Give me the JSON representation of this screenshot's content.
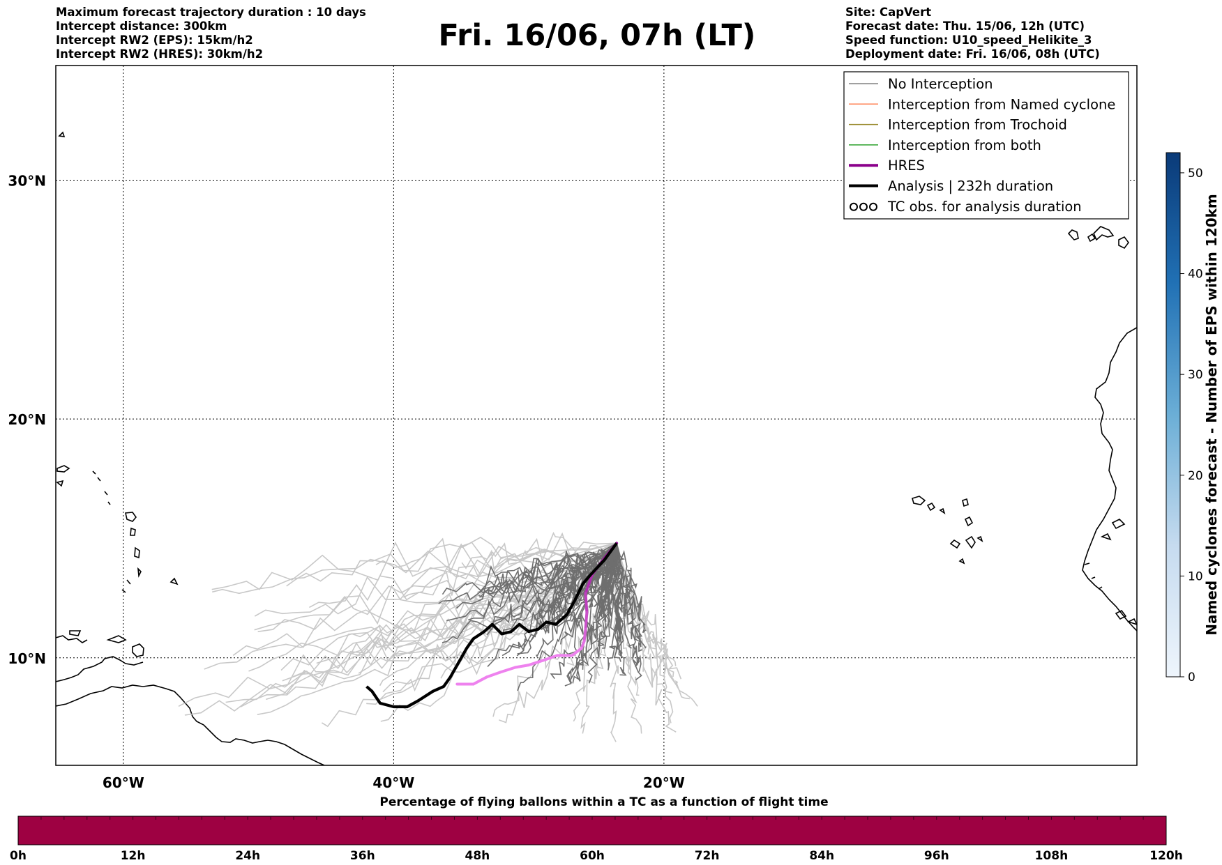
{
  "header_left": [
    "Maximum forecast trajectory duration : 10 days",
    "Intercept distance: 300km",
    "Intercept RW2 (EPS):  15km/h2",
    "Intercept RW2 (HRES): 30km/h2"
  ],
  "header_right": [
    "Site: CapVert",
    "Forecast date: Thu. 15/06, 12h (UTC)",
    "Speed function: U10_speed_Helikite_3",
    "Deployment date: Fri. 16/06, 08h (UTC)"
  ],
  "title": "Fri. 16/06, 07h (LT)",
  "chart_data": {
    "type": "line",
    "map": {
      "lon_range": [
        -65,
        15
      ],
      "lat_range": [
        5.5,
        34.8
      ],
      "x_ticks": [
        {
          "value": -60,
          "label": "60°W"
        },
        {
          "value": -40,
          "label": "40°W"
        },
        {
          "value": -20,
          "label": "20°W"
        }
      ],
      "y_ticks": [
        {
          "value": 10,
          "label": "10°N"
        },
        {
          "value": 20,
          "label": "20°N"
        },
        {
          "value": 30,
          "label": "30°N"
        }
      ],
      "grid": true
    },
    "legend": {
      "position": "top-right",
      "entries": [
        {
          "label": "No Interception",
          "color": "#808080",
          "kind": "line"
        },
        {
          "label": "Interception from Named cyclone",
          "color": "#ff7f50",
          "kind": "line"
        },
        {
          "label": "Interception from Trochoid",
          "color": "#9a8a2e",
          "kind": "line"
        },
        {
          "label": "Interception from both",
          "color": "#2ca02c",
          "kind": "line"
        },
        {
          "label": "HRES",
          "color": "#8b008b",
          "kind": "thick"
        },
        {
          "label": "Analysis | 232h duration",
          "color": "#000000",
          "kind": "thick"
        },
        {
          "label": "TC obs. for analysis duration",
          "color": "#000000",
          "kind": "cyclone"
        }
      ]
    },
    "deployment_site": {
      "lon": -23.5,
      "lat": 14.8
    },
    "analysis_track": [
      [
        -23.5,
        14.8
      ],
      [
        -24.4,
        14.1
      ],
      [
        -25.4,
        13.5
      ],
      [
        -26.0,
        13.1
      ],
      [
        -26.6,
        12.4
      ],
      [
        -27.2,
        11.8
      ],
      [
        -28.0,
        11.4
      ],
      [
        -28.7,
        11.5
      ],
      [
        -29.3,
        11.2
      ],
      [
        -30.0,
        11.1
      ],
      [
        -30.7,
        11.4
      ],
      [
        -31.3,
        11.1
      ],
      [
        -32.0,
        11.0
      ],
      [
        -32.7,
        11.4
      ],
      [
        -33.3,
        11.1
      ],
      [
        -34.1,
        10.8
      ],
      [
        -34.6,
        10.4
      ],
      [
        -35.2,
        9.8
      ],
      [
        -35.8,
        9.2
      ],
      [
        -36.3,
        8.8
      ],
      [
        -37.1,
        8.6
      ],
      [
        -38.2,
        8.2
      ],
      [
        -39.0,
        7.95
      ],
      [
        -40.0,
        7.95
      ],
      [
        -41.0,
        8.1
      ],
      [
        -41.6,
        8.6
      ],
      [
        -42.0,
        8.8
      ]
    ],
    "hres_track": [
      [
        -23.5,
        14.8
      ],
      [
        -24.5,
        14.1
      ],
      [
        -25.3,
        13.5
      ],
      [
        -25.8,
        12.7
      ],
      [
        -25.7,
        11.9
      ],
      [
        -25.8,
        11.2
      ],
      [
        -25.9,
        10.7
      ],
      [
        -26.1,
        10.4
      ],
      [
        -26.8,
        10.1
      ],
      [
        -27.9,
        10.1
      ],
      [
        -28.9,
        9.9
      ],
      [
        -30.0,
        9.7
      ],
      [
        -31.0,
        9.6
      ],
      [
        -32.1,
        9.4
      ],
      [
        -33.1,
        9.2
      ],
      [
        -34.1,
        8.9
      ],
      [
        -34.9,
        8.9
      ],
      [
        -35.3,
        8.9
      ]
    ],
    "hres_colors": [
      "#8b008b",
      "#ee82ee"
    ],
    "bottom_colorbar": {
      "label": "Percentage of flying ballons within a TC as a function of flight time",
      "ticks": [
        "0h",
        "12h",
        "24h",
        "36h",
        "48h",
        "60h",
        "72h",
        "84h",
        "96h",
        "108h",
        "120h"
      ],
      "color": "#9e0142"
    },
    "right_colorbar": {
      "label": "Named cyclones forecast - Number of EPS within 120km",
      "range": [
        0,
        52
      ],
      "ticks": [
        0,
        10,
        20,
        30,
        40,
        50
      ],
      "cmap": [
        "#eef5fc",
        "#0a3a78"
      ]
    }
  }
}
